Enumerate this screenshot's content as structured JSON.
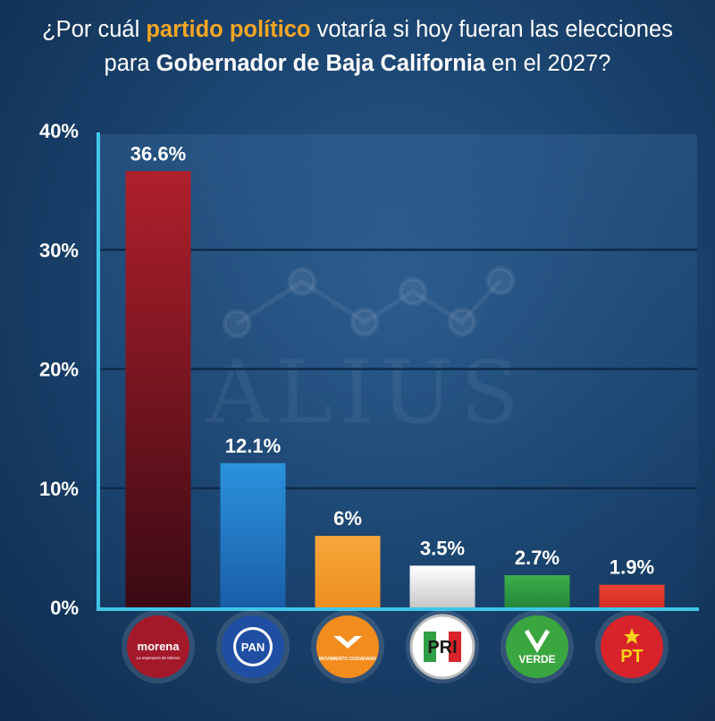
{
  "title": {
    "part1": "¿Por cuál ",
    "highlight": "partido político",
    "part2": " votaría si hoy fueran las elecciones",
    "part3": "para ",
    "bold": "Gobernador de Baja California",
    "part4": " en el 2027?"
  },
  "watermark": "ALIUS",
  "chart_data": {
    "type": "bar",
    "title": "¿Por cuál partido político votaría si hoy fueran las elecciones para Gobernador de Baja California en el 2027?",
    "xlabel": "",
    "ylabel": "",
    "ylim": [
      0,
      40
    ],
    "yticks": [
      "0%",
      "10%",
      "20%",
      "30%",
      "40%"
    ],
    "grid": true,
    "categories": [
      "Morena",
      "PAN",
      "Movimiento Ciudadano",
      "PRI",
      "Verde",
      "PT"
    ],
    "values": [
      36.6,
      12.1,
      6,
      3.5,
      2.7,
      1.9
    ],
    "value_labels": [
      "36.6%",
      "12.1%",
      "6%",
      "3.5%",
      "2.7%",
      "1.9%"
    ],
    "colors": [
      "#b0202c",
      "#2a8fd8",
      "#f39a2a",
      "#e8e8e8",
      "#2f9e44",
      "#e23a2c"
    ]
  },
  "logos": [
    {
      "icon": "morena-logo",
      "text": "morena",
      "sub": "La esperanza de México",
      "bg": "#a3192a"
    },
    {
      "icon": "pan-logo",
      "text": "PAN",
      "bg": "#1f4ea3"
    },
    {
      "icon": "mc-logo",
      "text": "MOVIMIENTO CIUDADANO",
      "bg": "#f28c1c"
    },
    {
      "icon": "pri-logo",
      "text": "PRI",
      "bg": "#ffffff"
    },
    {
      "icon": "verde-logo",
      "text": "VERDE",
      "bg": "#3aa63f"
    },
    {
      "icon": "pt-logo",
      "text": "PT",
      "bg": "#d8232a"
    }
  ]
}
